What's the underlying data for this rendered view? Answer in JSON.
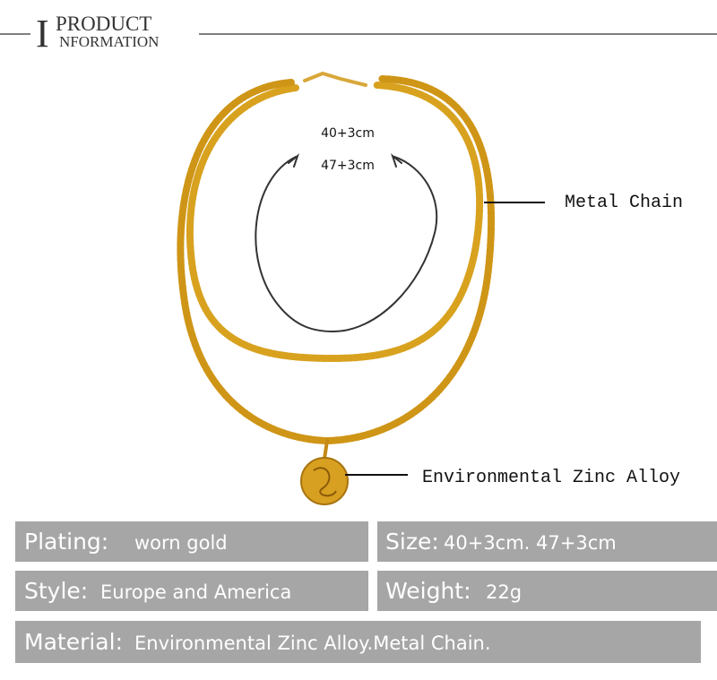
{
  "header": {
    "initial": "I",
    "line1": "PRODUCT",
    "line2": "NFORMATION"
  },
  "diagram": {
    "lengths": [
      "40+3cm",
      "47+3cm"
    ],
    "callouts": [
      "Metal Chain",
      "Environmental Zinc Alloy"
    ]
  },
  "specs": [
    {
      "label": "Plating:",
      "value": "worn gold"
    },
    {
      "label": "Size:",
      "value": "40+3cm. 47+3cm"
    },
    {
      "label": "Style:",
      "value": "Europe and America"
    },
    {
      "label": "Weight:",
      "value": "22g"
    },
    {
      "label": "Material:",
      "value": "Environmental Zinc Alloy.Metal Chain."
    }
  ]
}
